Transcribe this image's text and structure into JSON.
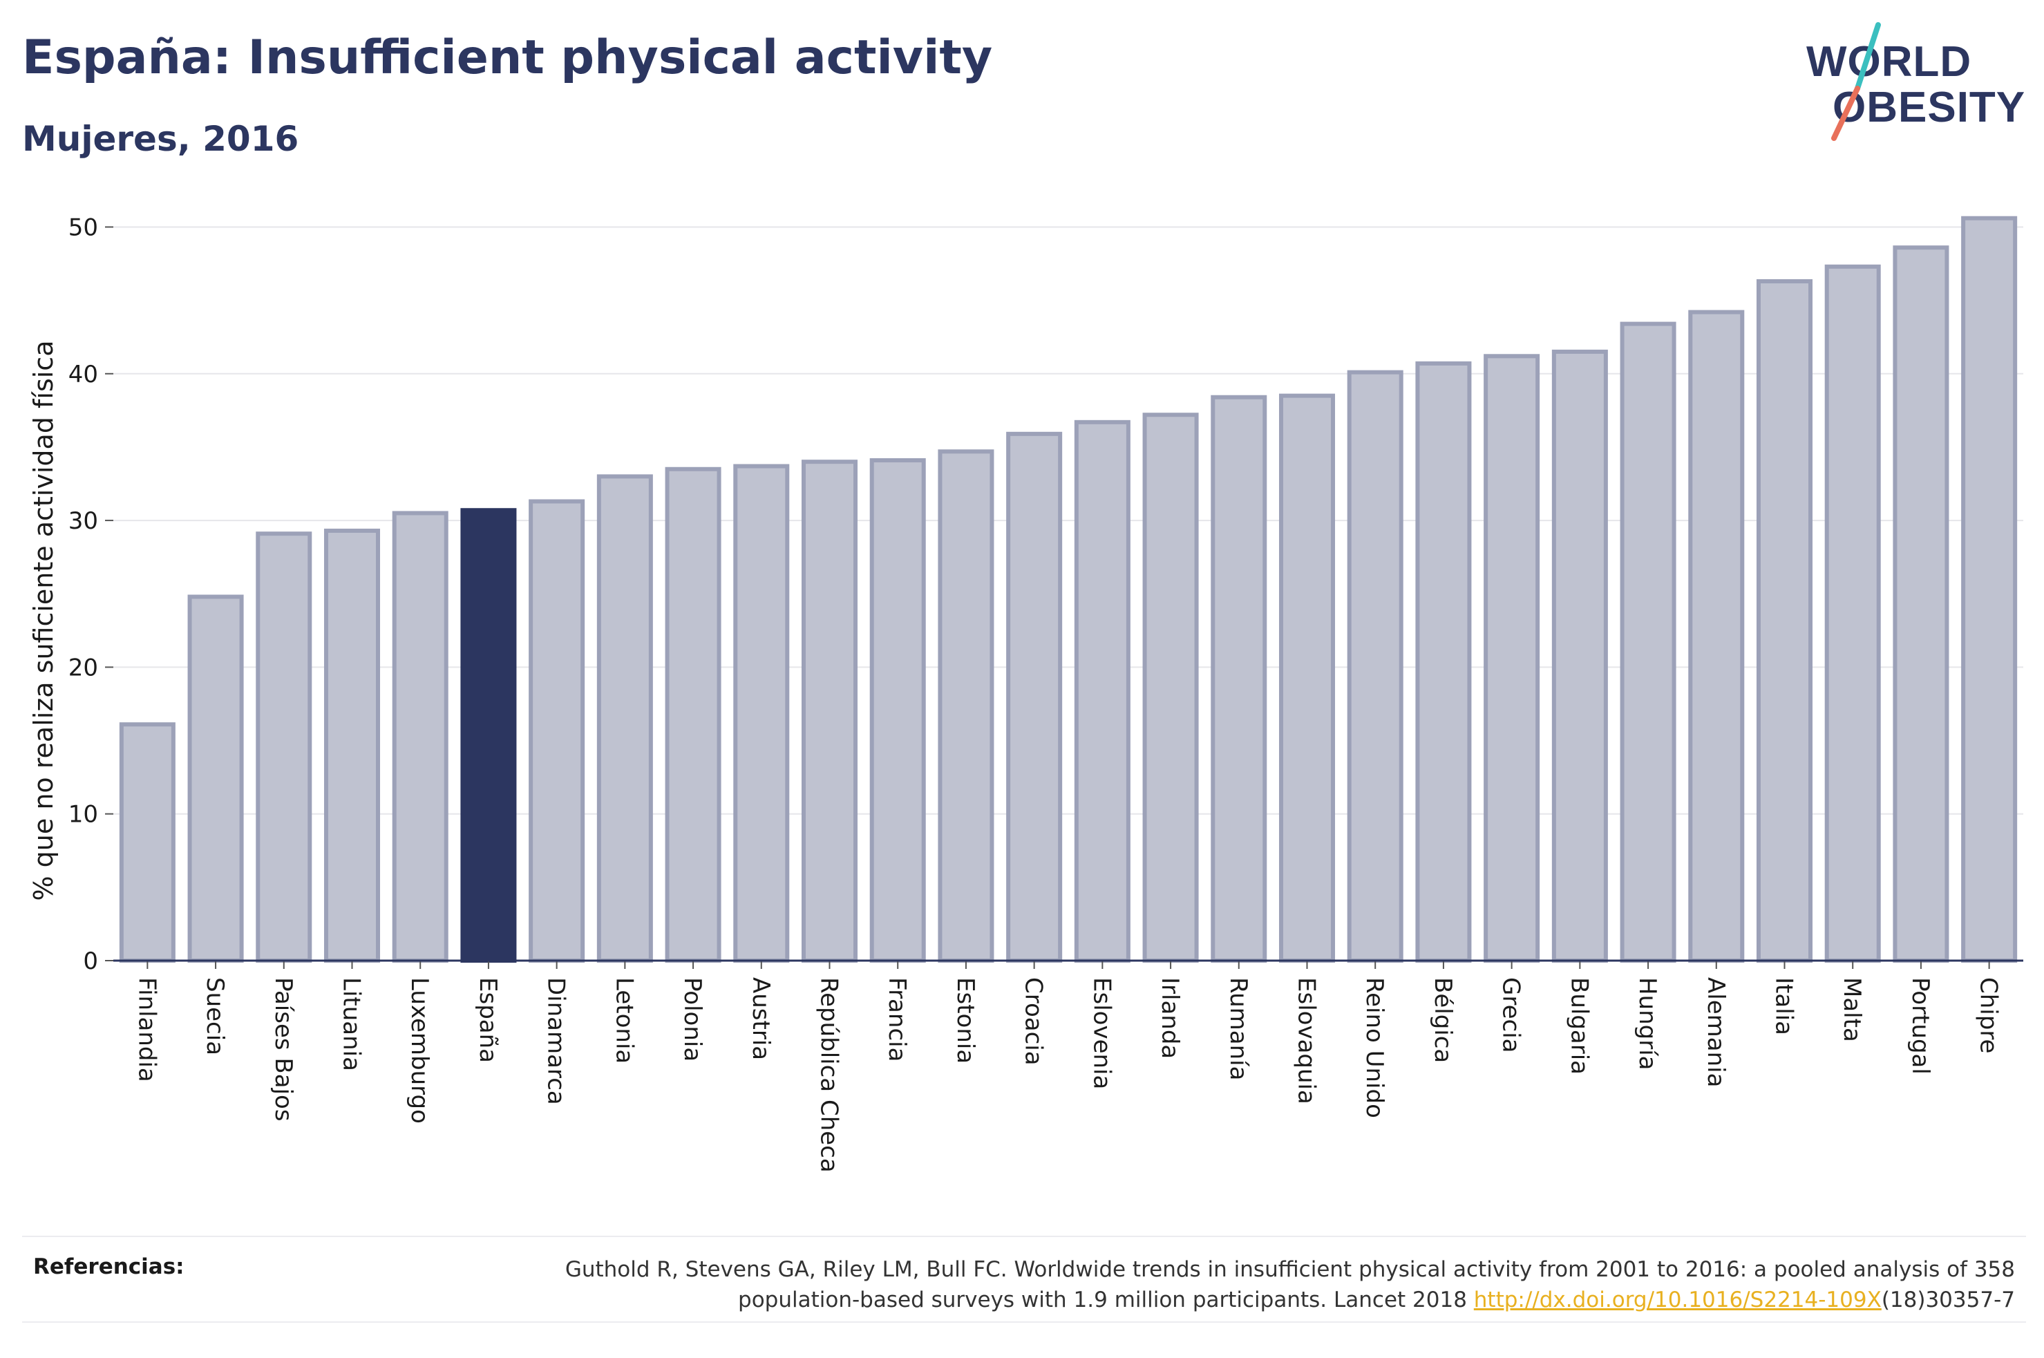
{
  "header": {
    "title": "España: Insufficient physical activity",
    "subtitle": "Mujeres, 2016"
  },
  "logo": {
    "line1": "WORLD",
    "line2": "OBESITY",
    "colors": {
      "text": "#2c3660",
      "slash_top": "#3bbfbf",
      "slash_bottom": "#e8705a"
    }
  },
  "chart_data": {
    "type": "bar",
    "ylabel": "% que no realiza suficiente actividad física",
    "xlabel": "",
    "ylim": [
      0,
      52
    ],
    "yticks": [
      0,
      10,
      20,
      30,
      40,
      50
    ],
    "grid": true,
    "highlight": "España",
    "colors": {
      "bar": "#bfc2d0",
      "bar_edge": "#9ca1b8",
      "highlight": "#2c3660",
      "grid": "#e6e6ea",
      "axis": "#2c3660"
    },
    "categories": [
      "Finlandia",
      "Suecia",
      "Países Bajos",
      "Lituania",
      "Luxemburgo",
      "España",
      "Dinamarca",
      "Letonia",
      "Polonia",
      "Austria",
      "República Checa",
      "Francia",
      "Estonia",
      "Croacia",
      "Eslovenia",
      "Irlanda",
      "Rumanía",
      "Eslovaquia",
      "Reino Unido",
      "Bélgica",
      "Grecia",
      "Bulgaria",
      "Hungría",
      "Alemania",
      "Italia",
      "Malta",
      "Portugal",
      "Chipre"
    ],
    "values": [
      16.1,
      24.8,
      29.1,
      29.3,
      30.5,
      30.7,
      31.3,
      33.0,
      33.5,
      33.7,
      34.0,
      34.1,
      34.7,
      35.9,
      36.7,
      37.2,
      38.4,
      38.5,
      40.1,
      40.7,
      41.2,
      41.5,
      43.4,
      44.2,
      46.3,
      47.3,
      48.6,
      50.6
    ]
  },
  "references": {
    "label": "Referencias:",
    "line1": "Guthold R, Stevens GA, Riley LM, Bull FC. Worldwide trends in insufficient physical activity from 2001 to 2016: a pooled analysis of 358",
    "line2_prefix": "population-based surveys with 1.9 million participants. Lancet 2018 ",
    "link": "http://dx.doi.org/10.1016/S2214-109X",
    "line2_suffix": "(18)30357-7"
  }
}
